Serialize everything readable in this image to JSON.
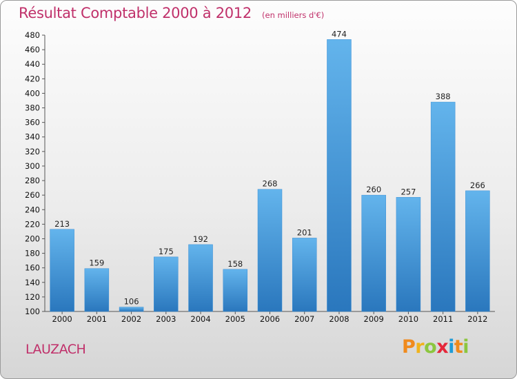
{
  "header": {
    "title": "Résultat Comptable 2000 à 2012",
    "unit": "(en milliers d'€)"
  },
  "footer": {
    "place": "LAUZACH",
    "logo_text": "Proxiti"
  },
  "colors": {
    "title": "#c0306a",
    "bar_light": "#63b4ec",
    "bar_dark": "#2a77bd"
  },
  "chart_data": {
    "type": "bar",
    "title": "Résultat Comptable 2000 à 2012",
    "subtitle": "(en milliers d'€)",
    "categories": [
      "2000",
      "2001",
      "2002",
      "2003",
      "2004",
      "2005",
      "2006",
      "2007",
      "2008",
      "2009",
      "2010",
      "2011",
      "2012"
    ],
    "values": [
      213,
      159,
      106,
      175,
      192,
      158,
      268,
      201,
      474,
      260,
      257,
      388,
      266
    ],
    "ylim": [
      100,
      480
    ],
    "yticks": [
      100,
      120,
      140,
      160,
      180,
      200,
      220,
      240,
      260,
      280,
      300,
      320,
      340,
      360,
      380,
      400,
      420,
      440,
      460,
      480
    ],
    "grid": false,
    "data_labels": true
  }
}
